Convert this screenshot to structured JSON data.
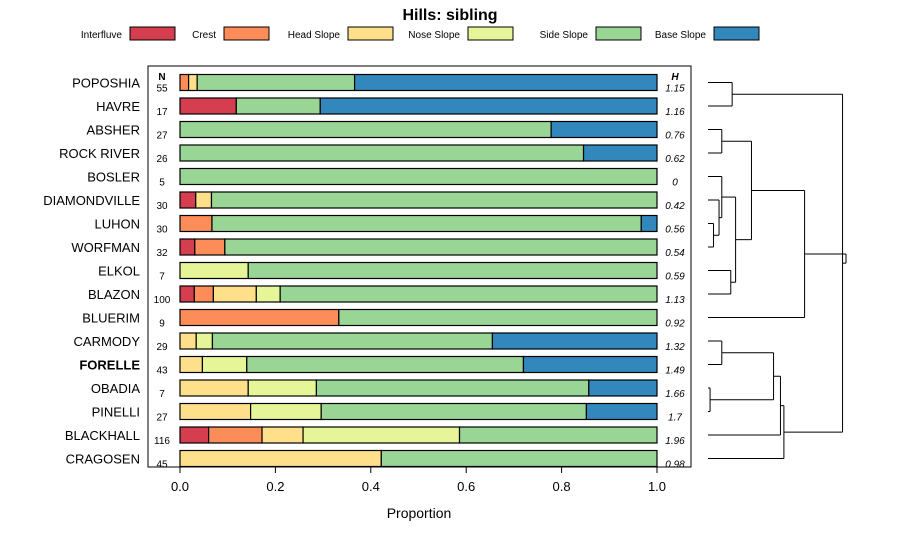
{
  "chart_data": {
    "type": "bar",
    "orientation": "horizontal",
    "stacked": true,
    "title": "Hills: sibling",
    "xlabel": "Proportion",
    "ylabel": "",
    "xlim": [
      0,
      1
    ],
    "xticks": [
      "0.0",
      "0.2",
      "0.4",
      "0.6",
      "0.8",
      "1.0"
    ],
    "n_header": "N",
    "h_header": "H",
    "highlight": "FORELLE",
    "legend": [
      {
        "name": "Interfluve",
        "color": "#d53e4f"
      },
      {
        "name": "Crest",
        "color": "#fc8d59"
      },
      {
        "name": "Head Slope",
        "color": "#fee08b"
      },
      {
        "name": "Nose Slope",
        "color": "#e6f598"
      },
      {
        "name": "Side Slope",
        "color": "#99d594"
      },
      {
        "name": "Base Slope",
        "color": "#3288bd"
      }
    ],
    "rows": [
      {
        "name": "POPOSHIA",
        "n": "55",
        "h": "1.15",
        "values": [
          0,
          0.018,
          0.018,
          0,
          0.33,
          0.634
        ]
      },
      {
        "name": "HAVRE",
        "n": "17",
        "h": "1.16",
        "values": [
          0.118,
          0,
          0,
          0,
          0.176,
          0.706
        ]
      },
      {
        "name": "ABSHER",
        "n": "27",
        "h": "0.76",
        "values": [
          0,
          0,
          0,
          0,
          0.778,
          0.222
        ]
      },
      {
        "name": "ROCK RIVER",
        "n": "26",
        "h": "0.62",
        "values": [
          0,
          0,
          0,
          0,
          0.846,
          0.154
        ]
      },
      {
        "name": "BOSLER",
        "n": "5",
        "h": "0",
        "values": [
          0,
          0,
          0,
          0,
          1.0,
          0
        ]
      },
      {
        "name": "DIAMONDVILLE",
        "n": "30",
        "h": "0.42",
        "values": [
          0.033,
          0,
          0.033,
          0,
          0.934,
          0
        ]
      },
      {
        "name": "LUHON",
        "n": "30",
        "h": "0.56",
        "values": [
          0,
          0.067,
          0,
          0,
          0.9,
          0.033
        ]
      },
      {
        "name": "WORFMAN",
        "n": "32",
        "h": "0.54",
        "values": [
          0.031,
          0.063,
          0,
          0,
          0.906,
          0
        ]
      },
      {
        "name": "ELKOL",
        "n": "7",
        "h": "0.59",
        "values": [
          0,
          0,
          0,
          0.143,
          0.857,
          0
        ]
      },
      {
        "name": "BLAZON",
        "n": "100",
        "h": "1.13",
        "values": [
          0.03,
          0.04,
          0.09,
          0.05,
          0.79,
          0
        ]
      },
      {
        "name": "BLUERIM",
        "n": "9",
        "h": "0.92",
        "values": [
          0,
          0.333,
          0,
          0,
          0.667,
          0
        ]
      },
      {
        "name": "CARMODY",
        "n": "29",
        "h": "1.32",
        "values": [
          0,
          0,
          0.034,
          0.034,
          0.587,
          0.345
        ]
      },
      {
        "name": "FORELLE",
        "n": "43",
        "h": "1.49",
        "values": [
          0,
          0,
          0.047,
          0.093,
          0.58,
          0.28
        ]
      },
      {
        "name": "OBADIA",
        "n": "7",
        "h": "1.66",
        "values": [
          0,
          0,
          0.143,
          0.143,
          0.571,
          0.143
        ]
      },
      {
        "name": "PINELLI",
        "n": "27",
        "h": "1.7",
        "values": [
          0,
          0,
          0.148,
          0.148,
          0.556,
          0.148
        ]
      },
      {
        "name": "BLACKHALL",
        "n": "116",
        "h": "1.96",
        "values": [
          0.06,
          0.112,
          0.086,
          0.328,
          0.414,
          0
        ]
      },
      {
        "name": "CRAGOSEN",
        "n": "45",
        "h": "0.98",
        "values": [
          0,
          0,
          0.422,
          0,
          0.578,
          0
        ]
      }
    ],
    "dendrogram": {
      "type": "hierarchical-clustering",
      "leaf_order": [
        "POPOSHIA",
        "HAVRE",
        "ABSHER",
        "ROCK RIVER",
        "BOSLER",
        "DIAMONDVILLE",
        "LUHON",
        "WORFMAN",
        "ELKOL",
        "BLAZON",
        "BLUERIM",
        "CARMODY",
        "FORELLE",
        "OBADIA",
        "PINELLI",
        "BLACKHALL",
        "CRAGOSEN"
      ],
      "merges": [
        [
          0,
          1,
          0.35
        ],
        [
          2,
          3,
          0.2
        ],
        [
          6,
          7,
          0.08
        ],
        [
          5,
          -3,
          0.16
        ],
        [
          4,
          -4,
          0.2
        ],
        [
          8,
          9,
          0.33
        ],
        [
          -5,
          -6,
          0.4
        ],
        [
          -2,
          -7,
          0.63
        ],
        [
          -8,
          10,
          1.4
        ],
        [
          11,
          12,
          0.2
        ],
        [
          13,
          14,
          0.03
        ],
        [
          -10,
          -11,
          0.95
        ],
        [
          -12,
          15,
          1.05
        ],
        [
          -13,
          16,
          1.1
        ],
        [
          -1,
          -14,
          1.95
        ],
        [
          -9,
          -15,
          2.0
        ]
      ]
    }
  }
}
